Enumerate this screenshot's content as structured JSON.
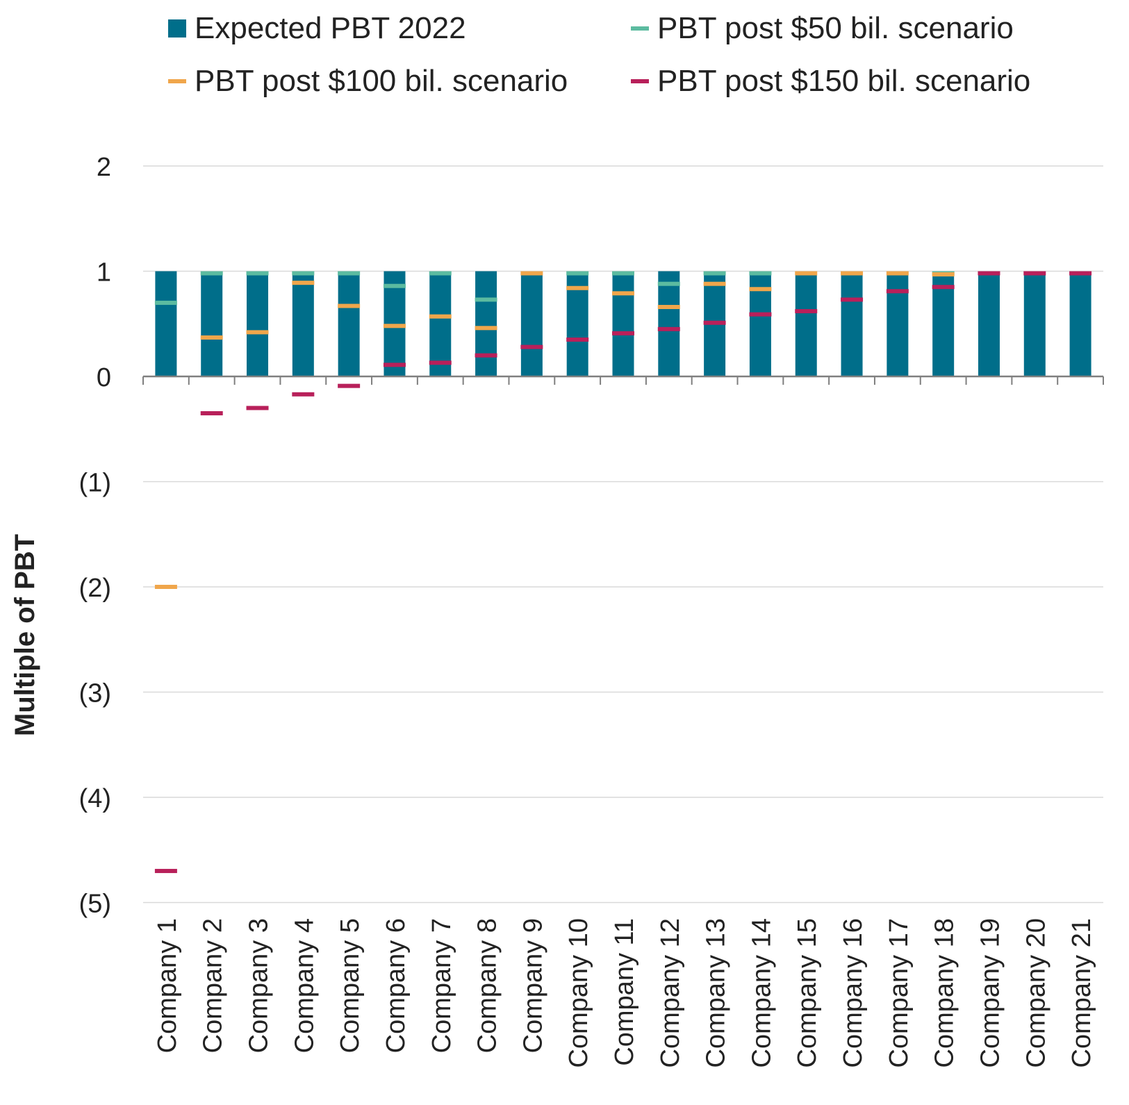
{
  "legend": {
    "expected": "Expected PBT 2022",
    "s50": "PBT post $50 bil. scenario",
    "s100": "PBT post $100 bil. scenario",
    "s150": "PBT post $150 bil. scenario"
  },
  "colors": {
    "expected": "#006e8a",
    "s50": "#5cbba0",
    "s100": "#f0a64b",
    "s150": "#b8205a",
    "grid": "#d9d9d9",
    "axis": "#7f7f7f"
  },
  "chart_data": {
    "type": "bar",
    "ylabel": "Multiple of PBT",
    "xlabel": "",
    "ylim": [
      -5,
      2
    ],
    "yticks": [
      2,
      1,
      0,
      -1,
      -2,
      -3,
      -4,
      -5
    ],
    "ytick_labels": [
      "2",
      "1",
      "0",
      "(1)",
      "(2)",
      "(3)",
      "(4)",
      "(5)"
    ],
    "grid": true,
    "legend_position": "top",
    "categories": [
      "Company 1",
      "Company 2",
      "Company 3",
      "Company 4",
      "Company 5",
      "Company 6",
      "Company 7",
      "Company 8",
      "Company 9",
      "Company 10",
      "Company 11",
      "Company 12",
      "Company 13",
      "Company 14",
      "Company 15",
      "Company 16",
      "Company 17",
      "Company 18",
      "Company 19",
      "Company 20",
      "Company 21"
    ],
    "series": [
      {
        "name": "Expected PBT 2022",
        "kind": "bar",
        "values": [
          1,
          1,
          1,
          1,
          1,
          1,
          1,
          1,
          1,
          1,
          1,
          1,
          1,
          1,
          1,
          1,
          1,
          1,
          1,
          1,
          1
        ]
      },
      {
        "name": "PBT post $50 bil. scenario",
        "kind": "marker",
        "values": [
          0.7,
          1.0,
          1.0,
          1.0,
          1.0,
          0.86,
          1.0,
          0.73,
          null,
          1.0,
          1.0,
          0.88,
          1.0,
          1.0,
          null,
          null,
          null,
          1.0,
          null,
          null,
          null
        ]
      },
      {
        "name": "PBT post $100 bil. scenario",
        "kind": "marker",
        "values": [
          -2.0,
          0.37,
          0.42,
          0.89,
          0.67,
          0.48,
          0.57,
          0.46,
          1.0,
          0.84,
          0.79,
          0.66,
          0.88,
          0.83,
          1.0,
          1.0,
          1.0,
          0.97,
          null,
          null,
          null
        ]
      },
      {
        "name": "PBT post $150 bil. scenario",
        "kind": "marker",
        "values": [
          -4.7,
          -0.35,
          -0.3,
          -0.17,
          -0.09,
          0.11,
          0.13,
          0.2,
          0.28,
          0.35,
          0.41,
          0.45,
          0.51,
          0.59,
          0.62,
          0.73,
          0.81,
          0.85,
          1.0,
          1.0,
          1.0
        ]
      }
    ]
  }
}
